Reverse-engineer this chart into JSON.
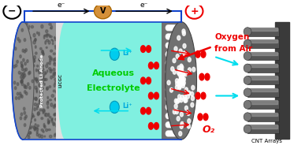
{
  "bg_color": "#ffffff",
  "anode_gray": "#909090",
  "anode_dark": "#606060",
  "licgc_color": "#cccccc",
  "electrolyte_color": "#80f0e0",
  "cathode_bg": "#787878",
  "cathode_dot_color": "#e8e8e8",
  "cnt_dark": "#404040",
  "cnt_light": "#aaaaaa",
  "cnt_back": "#555555",
  "minus_text": "−",
  "plus_text": "+",
  "v_symbol": "V",
  "licgc_label": "LICGC",
  "anode_label": "Protected Li Anode",
  "electrolyte_label1": "Aqueous",
  "electrolyte_label2": "Electrolyte",
  "li_ion": "Li⁺",
  "oxygen_from_air1": "Oxygen",
  "oxygen_from_air2": "from Air",
  "o2_label": "O₂",
  "cnt_label": "CNT Arrays",
  "circuit_blue": "#1144cc",
  "red": "#ee0000",
  "cyan": "#00ddee",
  "green": "#00cc00"
}
